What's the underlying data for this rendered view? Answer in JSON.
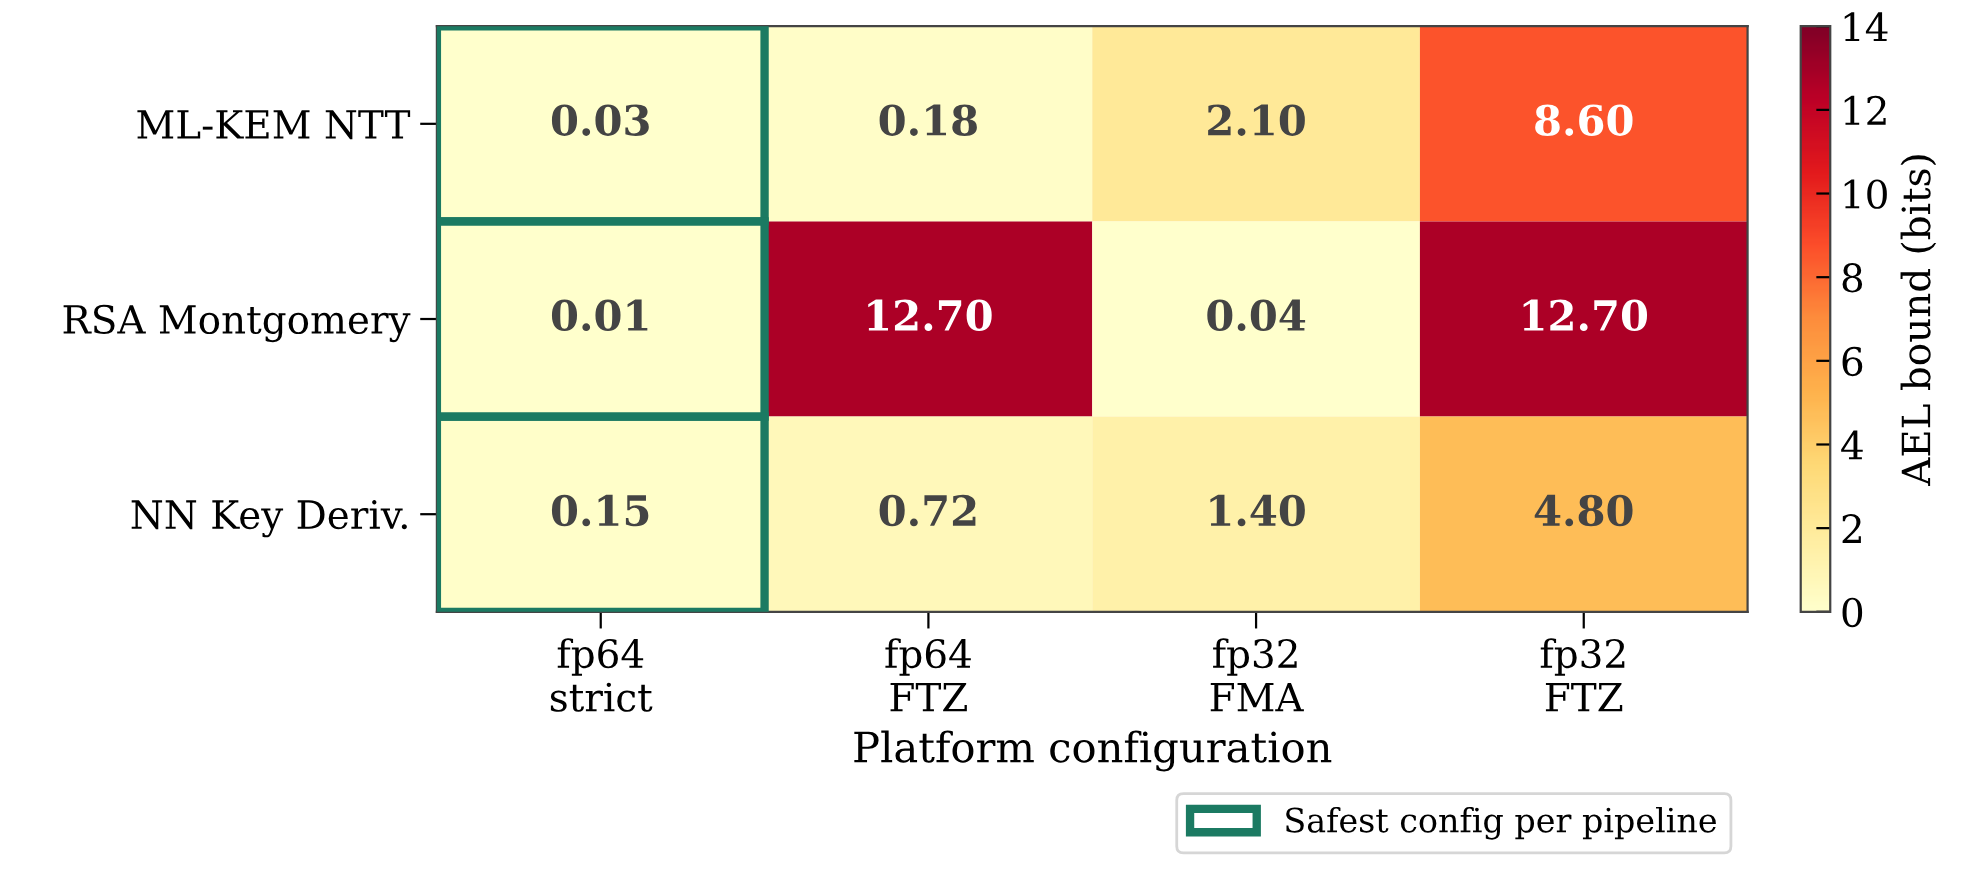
{
  "chart_data": {
    "type": "heatmap",
    "categories": [
      "fp64\nstrict",
      "fp64\nFTZ",
      "fp32\nFMA",
      "fp32\nFTZ"
    ],
    "y_categories": [
      "ML-KEM NTT",
      "RSA Montgomery",
      "NN Key Deriv."
    ],
    "cells": [
      [
        0.03,
        0.18,
        2.1,
        8.6
      ],
      [
        0.01,
        12.7,
        0.04,
        12.7
      ],
      [
        0.15,
        0.72,
        1.4,
        4.8
      ]
    ],
    "cell_labels": [
      [
        "0.03",
        "0.18",
        "2.10",
        "8.60"
      ],
      [
        "0.01",
        "12.70",
        "0.04",
        "12.70"
      ],
      [
        "0.15",
        "0.72",
        "1.40",
        "4.80"
      ]
    ],
    "clim": [
      0,
      14
    ],
    "cticks": [
      0,
      2,
      4,
      6,
      8,
      10,
      12,
      14
    ],
    "clabel": "AEL bound (bits)",
    "xlabel": "Platform configuration",
    "annotations": [
      "Safest config per pipeline"
    ]
  }
}
